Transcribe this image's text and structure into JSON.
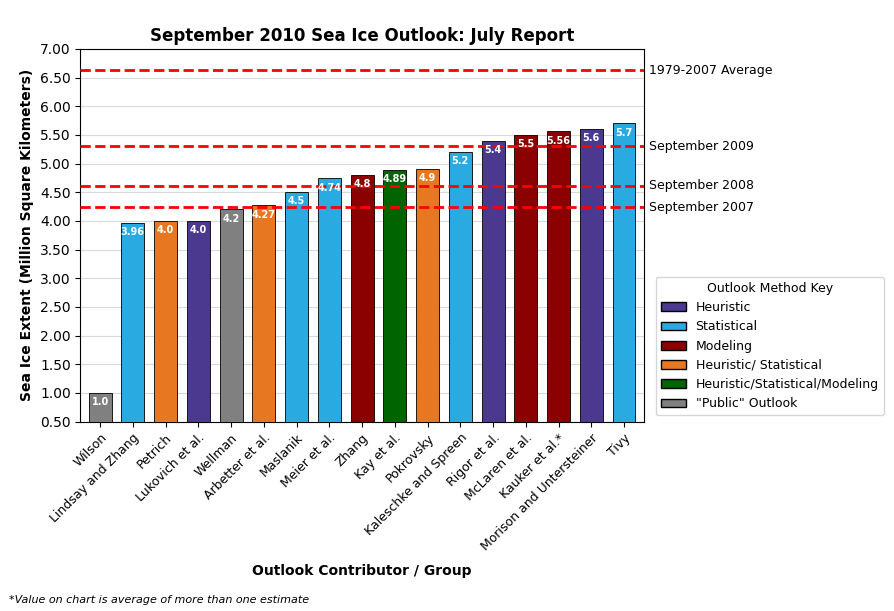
{
  "chart_data": {
    "type": "bar",
    "title": "September 2010 Sea Ice Outlook: July Report",
    "xlabel": "Outlook Contributor / Group",
    "ylabel": "Sea Ice Extent (Million Square Kilometers)",
    "categories": [
      "Wilson",
      "Lindsay and Zhang",
      "Petrich",
      "Lukovich et al.",
      "Wellman",
      "Arbetter et al.",
      "Maslanik",
      "Meier et al.",
      "Zhang",
      "Kay et al.",
      "Pokrovsky",
      "Kaleschke and Spreen",
      "Rigor et al.",
      "McLaren et al.",
      "Kauker et al.*",
      "Morison and Untersteiner",
      "Tivy"
    ],
    "values": [
      1.0,
      3.96,
      4.0,
      4.0,
      4.2,
      4.27,
      4.5,
      4.74,
      4.8,
      4.89,
      4.9,
      5.2,
      5.4,
      5.5,
      5.56,
      5.6,
      5.7
    ],
    "colors": [
      "#808080",
      "#29ABE2",
      "#E87722",
      "#4B3990",
      "#808080",
      "#E87722",
      "#29ABE2",
      "#29ABE2",
      "#8B0000",
      "#006400",
      "#E87722",
      "#29ABE2",
      "#4B3990",
      "#8B0000",
      "#8B0000",
      "#4B3990",
      "#29ABE2"
    ],
    "ylim": [
      0.5,
      7.0
    ],
    "yticks": [
      {
        "value": 0.5,
        "label": "0.50"
      },
      {
        "value": 1.0,
        "label": "1.00"
      },
      {
        "value": 1.5,
        "label": "1.50"
      },
      {
        "value": 2.0,
        "label": "2.00"
      },
      {
        "value": 2.5,
        "label": "2.50"
      },
      {
        "value": 3.0,
        "label": "3.00"
      },
      {
        "value": 3.5,
        "label": "3.50"
      },
      {
        "value": 4.0,
        "label": "4.00"
      },
      {
        "value": 4.5,
        "label": "4.50"
      },
      {
        "value": 5.0,
        "label": "5.00"
      },
      {
        "value": 5.5,
        "label": "5.50"
      },
      {
        "value": 6.0,
        "label": "6.00"
      },
      {
        "value": 6.5,
        "label": "6.50"
      },
      {
        "value": 7.0,
        "label": "7.00"
      }
    ],
    "grid": true,
    "data_labels": true,
    "reference_lines": [
      {
        "y": 6.63,
        "label": "1979-2007 Average",
        "color": "red"
      },
      {
        "y": 5.3,
        "label": "September 2009",
        "color": "red"
      },
      {
        "y": 4.61,
        "label": "September 2008",
        "color": "red"
      },
      {
        "y": 4.24,
        "label": "September 2007",
        "color": "red"
      }
    ],
    "legend": "right",
    "legend_title": "Outlook Method Key",
    "legend_entries": [
      {
        "name": "Heuristic",
        "color": "#4B3990"
      },
      {
        "name": "Statistical",
        "color": "#29ABE2"
      },
      {
        "name": "Modeling",
        "color": "#8B0000"
      },
      {
        "name": "Heuristic/ Statistical",
        "color": "#E87722"
      },
      {
        "name": "Heuristic/Statistical/Modeling",
        "color": "#006400"
      },
      {
        "name": "\"Public\" Outlook",
        "color": "#808080"
      }
    ],
    "footnote": "*Value on chart is average of more than one estimate"
  }
}
